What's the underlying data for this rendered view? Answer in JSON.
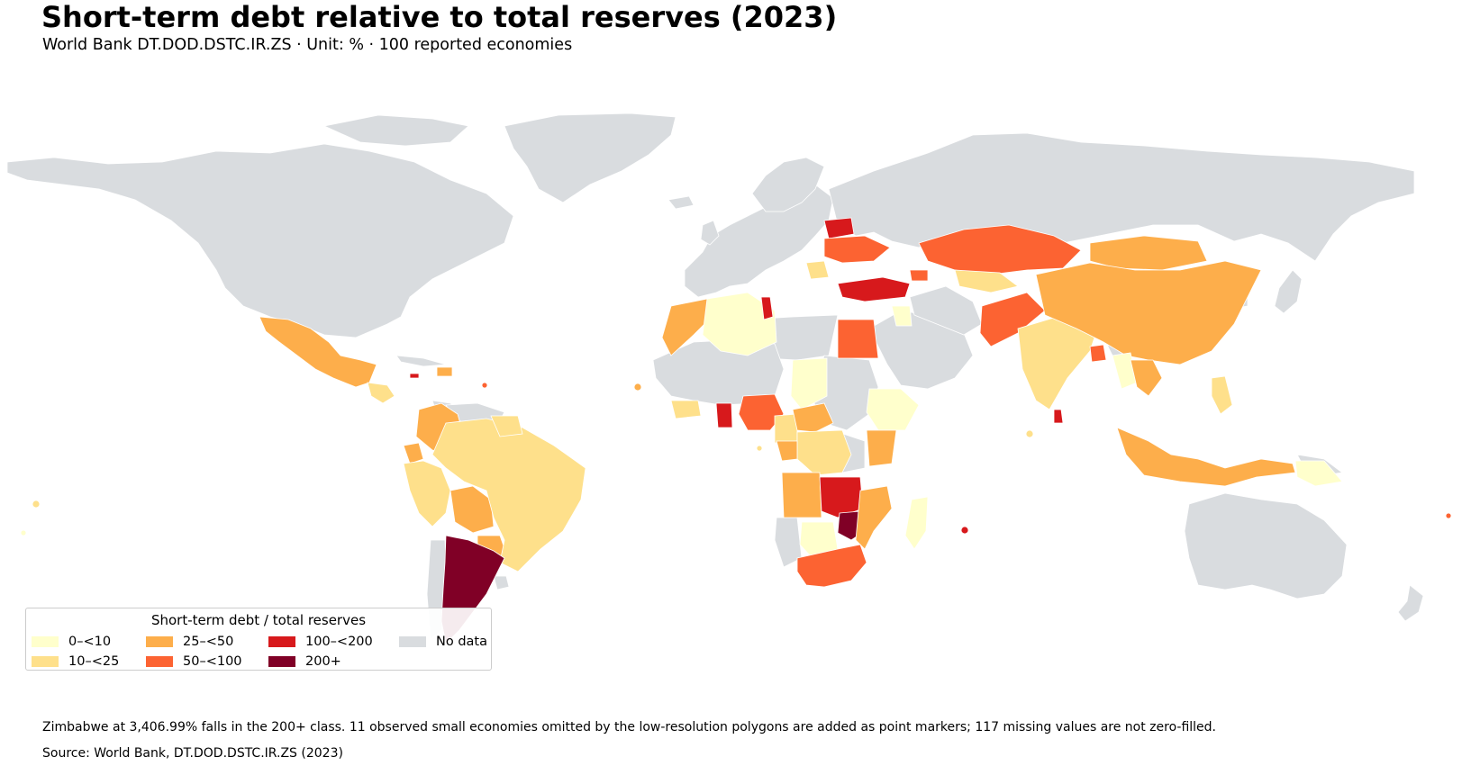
{
  "title": "Short-term debt relative to total reserves (2023)",
  "subtitle": "World Bank DT.DOD.DSTC.IR.ZS · Unit: % · 100 reported economies",
  "legend": {
    "title": "Short-term debt / total reserves",
    "items": [
      {
        "label": "0–<10",
        "color": "#ffffcc"
      },
      {
        "label": "10–<25",
        "color": "#fee08b"
      },
      {
        "label": "25–<50",
        "color": "#fdae4b"
      },
      {
        "label": "50–<100",
        "color": "#fc6332"
      },
      {
        "label": "100–<200",
        "color": "#d7191c"
      },
      {
        "label": "200+",
        "color": "#800026"
      },
      {
        "label": "No data",
        "color": "#d9dcdf"
      }
    ]
  },
  "footnote": "Zimbabwe at 3,406.99% falls in the 200+ class. 11 observed small economies omitted by the low-resolution polygons are added as point markers; 117 missing values are not zero-filled.",
  "source": "Source: World Bank, DT.DOD.DSTC.IR.ZS (2023)",
  "colors": {
    "background": "#ffffff",
    "no_data": "#d9dcdf",
    "border": "#ffffff"
  }
}
